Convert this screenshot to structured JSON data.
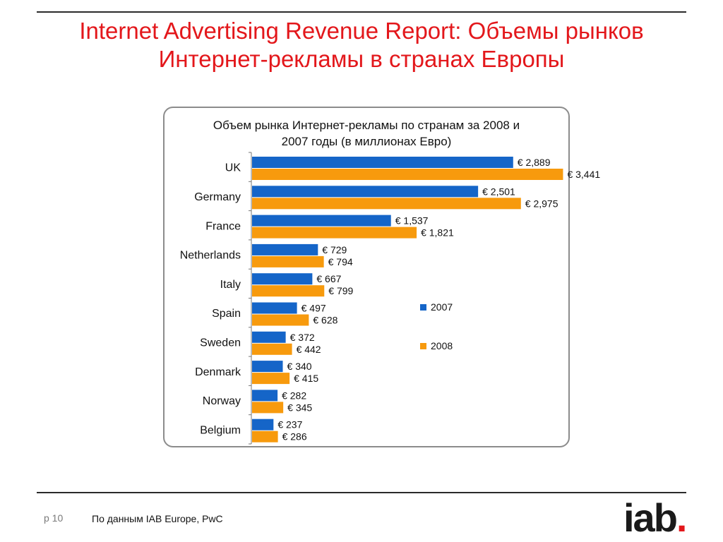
{
  "slide": {
    "title_line1": "Internet Advertising Revenue Report: Объемы рынков",
    "title_line2": "Интернет-рекламы в странах Европы",
    "page": "p 10",
    "source": "По данным  IAB Europe, PwC",
    "logo_text": "iab",
    "logo_dot": "."
  },
  "colors": {
    "title": "#e3171b",
    "series_2007": "#1565c8",
    "series_2008": "#f79a0d",
    "logo_dot": "#e3171b"
  },
  "chart_data": {
    "type": "bar",
    "orientation": "horizontal",
    "title_line1": "Объем рынка Интернет-рекламы по странам за 2008 и",
    "title_line2": "2007 годы (в миллионах Евро)",
    "categories": [
      "UK",
      "Germany",
      "France",
      "Netherlands",
      "Italy",
      "Spain",
      "Sweden",
      "Denmark",
      "Norway",
      "Belgium"
    ],
    "series": [
      {
        "name": "2007",
        "values": [
          2889,
          2501,
          1537,
          729,
          667,
          497,
          372,
          340,
          282,
          237
        ],
        "labels": [
          "€ 2,889",
          "€ 2,501",
          "€ 1,537",
          "€ 729",
          "€ 667",
          "€ 497",
          "€ 372",
          "€ 340",
          "€ 282",
          "€ 237"
        ]
      },
      {
        "name": "2008",
        "values": [
          3441,
          2975,
          1821,
          794,
          799,
          628,
          442,
          415,
          345,
          286
        ],
        "labels": [
          "€ 3,441",
          "€ 2,975",
          "€ 1,821",
          "€ 794",
          "€ 799",
          "€ 628",
          "€ 442",
          "€ 415",
          "€ 345",
          "€ 286"
        ]
      }
    ],
    "xlim": [
      0,
      3500
    ],
    "grid": false,
    "legend": "right"
  }
}
